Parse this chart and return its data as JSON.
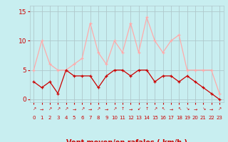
{
  "x": [
    0,
    1,
    2,
    3,
    4,
    5,
    6,
    7,
    8,
    9,
    10,
    11,
    12,
    13,
    14,
    15,
    16,
    17,
    18,
    19,
    20,
    21,
    22,
    23
  ],
  "avg_wind": [
    3,
    2,
    3,
    1,
    5,
    4,
    4,
    4,
    2,
    4,
    5,
    5,
    4,
    5,
    5,
    3,
    4,
    4,
    3,
    4,
    3,
    2,
    1,
    0
  ],
  "gusts": [
    5,
    10,
    6,
    5,
    5,
    6,
    7,
    13,
    8,
    6,
    10,
    8,
    13,
    8,
    14,
    10,
    8,
    10,
    11,
    5,
    5,
    5,
    5,
    1
  ],
  "avg_color": "#cc0000",
  "gust_color": "#ffaaaa",
  "bg_color": "#c8eef0",
  "grid_color": "#b0c8cc",
  "xlabel": "Vent moyen/en rafales ( km/h )",
  "xlabel_color": "#cc0000",
  "yticks": [
    0,
    5,
    10,
    15
  ],
  "xticks": [
    0,
    1,
    2,
    3,
    4,
    5,
    6,
    7,
    8,
    9,
    10,
    11,
    12,
    13,
    14,
    15,
    16,
    17,
    18,
    19,
    20,
    21,
    22,
    23
  ],
  "ylim": [
    -0.5,
    16
  ],
  "xlim": [
    -0.5,
    23.5
  ],
  "tick_color": "#cc0000",
  "wind_symbols": [
    "↗",
    "→",
    "↗",
    "↗",
    "↗",
    "→",
    "↗",
    "→",
    "↗",
    "→",
    "↗",
    "↑",
    "→",
    "↙",
    "↑",
    "↗",
    "↖",
    "→",
    "↖",
    "↘",
    "→",
    "↘",
    "→",
    "↗"
  ]
}
